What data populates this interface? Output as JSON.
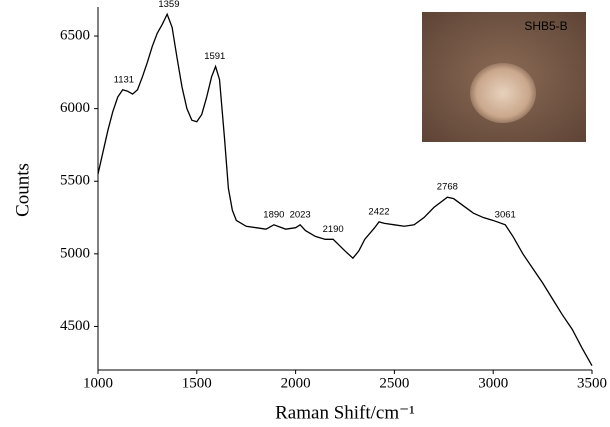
{
  "chart_data": {
    "type": "line",
    "xlabel": "Raman Shift/cm⁻¹",
    "ylabel": "Counts",
    "inset_label": "SHB5-B",
    "color": "#000000",
    "x": [
      1000,
      1025,
      1050,
      1075,
      1100,
      1125,
      1150,
      1175,
      1200,
      1225,
      1250,
      1275,
      1300,
      1325,
      1350,
      1375,
      1400,
      1425,
      1450,
      1475,
      1500,
      1525,
      1550,
      1575,
      1595,
      1615,
      1640,
      1660,
      1680,
      1700,
      1750,
      1800,
      1850,
      1890,
      1950,
      2000,
      2023,
      2050,
      2100,
      2150,
      2190,
      2250,
      2290,
      2320,
      2350,
      2400,
      2422,
      2450,
      2500,
      2550,
      2600,
      2650,
      2700,
      2768,
      2800,
      2850,
      2900,
      2950,
      3000,
      3061,
      3100,
      3150,
      3200,
      3250,
      3300,
      3350,
      3400,
      3450,
      3500
    ],
    "values": [
      5550,
      5700,
      5850,
      5980,
      6080,
      6130,
      6120,
      6100,
      6130,
      6220,
      6320,
      6430,
      6520,
      6580,
      6650,
      6560,
      6350,
      6150,
      6000,
      5920,
      5910,
      5960,
      6080,
      6220,
      6290,
      6200,
      5800,
      5450,
      5300,
      5230,
      5190,
      5180,
      5170,
      5200,
      5170,
      5180,
      5200,
      5160,
      5120,
      5100,
      5100,
      5020,
      4970,
      5020,
      5100,
      5180,
      5220,
      5210,
      5200,
      5190,
      5200,
      5250,
      5320,
      5390,
      5380,
      5330,
      5280,
      5250,
      5230,
      5200,
      5120,
      5000,
      4900,
      4800,
      4690,
      4580,
      4480,
      4350,
      4230
    ],
    "xlim": [
      1000,
      3500
    ],
    "xticks": [
      1000,
      1500,
      2000,
      2500,
      3000,
      3500
    ],
    "ylim": [
      4200,
      6700
    ],
    "yticks": [
      4500,
      5000,
      5500,
      6000,
      6500
    ],
    "annotations": [
      {
        "label": "1131",
        "x": 1131,
        "y": 6130
      },
      {
        "label": "1359",
        "x": 1359,
        "y": 6650
      },
      {
        "label": "1591",
        "x": 1591,
        "y": 6290
      },
      {
        "label": "1890",
        "x": 1890,
        "y": 5200
      },
      {
        "label": "2023",
        "x": 2023,
        "y": 5200
      },
      {
        "label": "2190",
        "x": 2190,
        "y": 5100
      },
      {
        "label": "2422",
        "x": 2422,
        "y": 5220
      },
      {
        "label": "2768",
        "x": 2768,
        "y": 5390
      },
      {
        "label": "3061",
        "x": 3061,
        "y": 5200
      }
    ]
  }
}
